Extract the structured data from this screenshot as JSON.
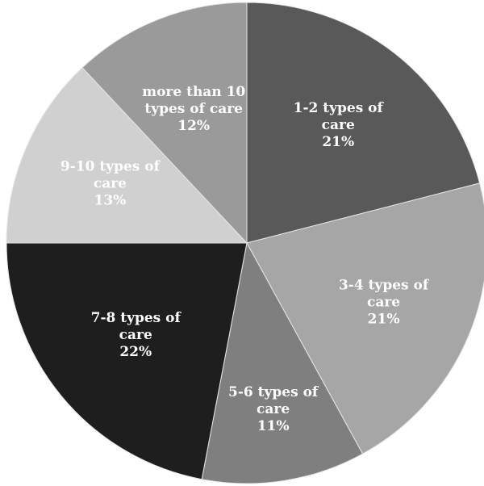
{
  "chart_data": {
    "type": "pie",
    "title": "",
    "slices": [
      {
        "label_lines": [
          "1-2 types of",
          "care"
        ],
        "value": 21,
        "value_label": "21%",
        "color": "#595959"
      },
      {
        "label_lines": [
          "3-4 types of",
          "care"
        ],
        "value": 21,
        "value_label": "21%",
        "color": "#a6a6a6"
      },
      {
        "label_lines": [
          "5-6 types of",
          "care"
        ],
        "value": 11,
        "value_label": "11%",
        "color": "#7f7f7f"
      },
      {
        "label_lines": [
          "7-8 types of",
          "care"
        ],
        "value": 22,
        "value_label": "22%",
        "color": "#1e1e1e"
      },
      {
        "label_lines": [
          "9-10 types of",
          "care"
        ],
        "value": 13,
        "value_label": "13%",
        "color": "#d0d0d0"
      },
      {
        "label_lines": [
          "more than 10",
          "types of care"
        ],
        "value": 12,
        "value_label": "12%",
        "color": "#9a9a9a"
      }
    ],
    "start_angle": "12 o'clock",
    "direction": "clockwise",
    "labels_inside": true,
    "legend": "none",
    "slice_outline_color": "#e6e6e6"
  }
}
